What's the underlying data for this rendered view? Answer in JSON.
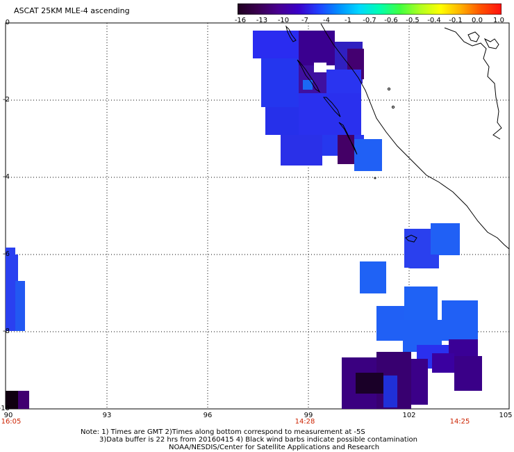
{
  "title": "ASCAT 25KM MLE-4 ascending",
  "colorbar": {
    "labels": [
      "-16",
      "-13",
      "-10",
      "-7",
      "-4",
      "-1",
      "-0.7",
      "-0.6",
      "-0.5",
      "-0.4",
      "-0.1",
      "0.0",
      "1.0"
    ],
    "colors": [
      "#200020",
      "#3a0050",
      "#480090",
      "#3a00c8",
      "#2040ff",
      "#0090ff",
      "#00d8ff",
      "#00ffb0",
      "#40ff40",
      "#b0ff20",
      "#ffff00",
      "#ffb000",
      "#ff5000",
      "#ff1010"
    ]
  },
  "axes": {
    "y_ticks": [
      "0",
      "-2",
      "-4",
      "-6",
      "-8",
      "-10"
    ],
    "x_ticks": [
      "90",
      "93",
      "96",
      "99",
      "102",
      "105"
    ]
  },
  "time_labels": [
    "16:05",
    "14:28",
    "14:25"
  ],
  "notes": [
    "Note: 1) Times are GMT 2)Times along bottom correspond to measurement at -5S",
    "3)Data buffer is 22 hrs from 20160415 4) Black wind barbs indicate possible contamination",
    "NOAA/NESDIS/Center for Satellite Applications and Research"
  ]
}
